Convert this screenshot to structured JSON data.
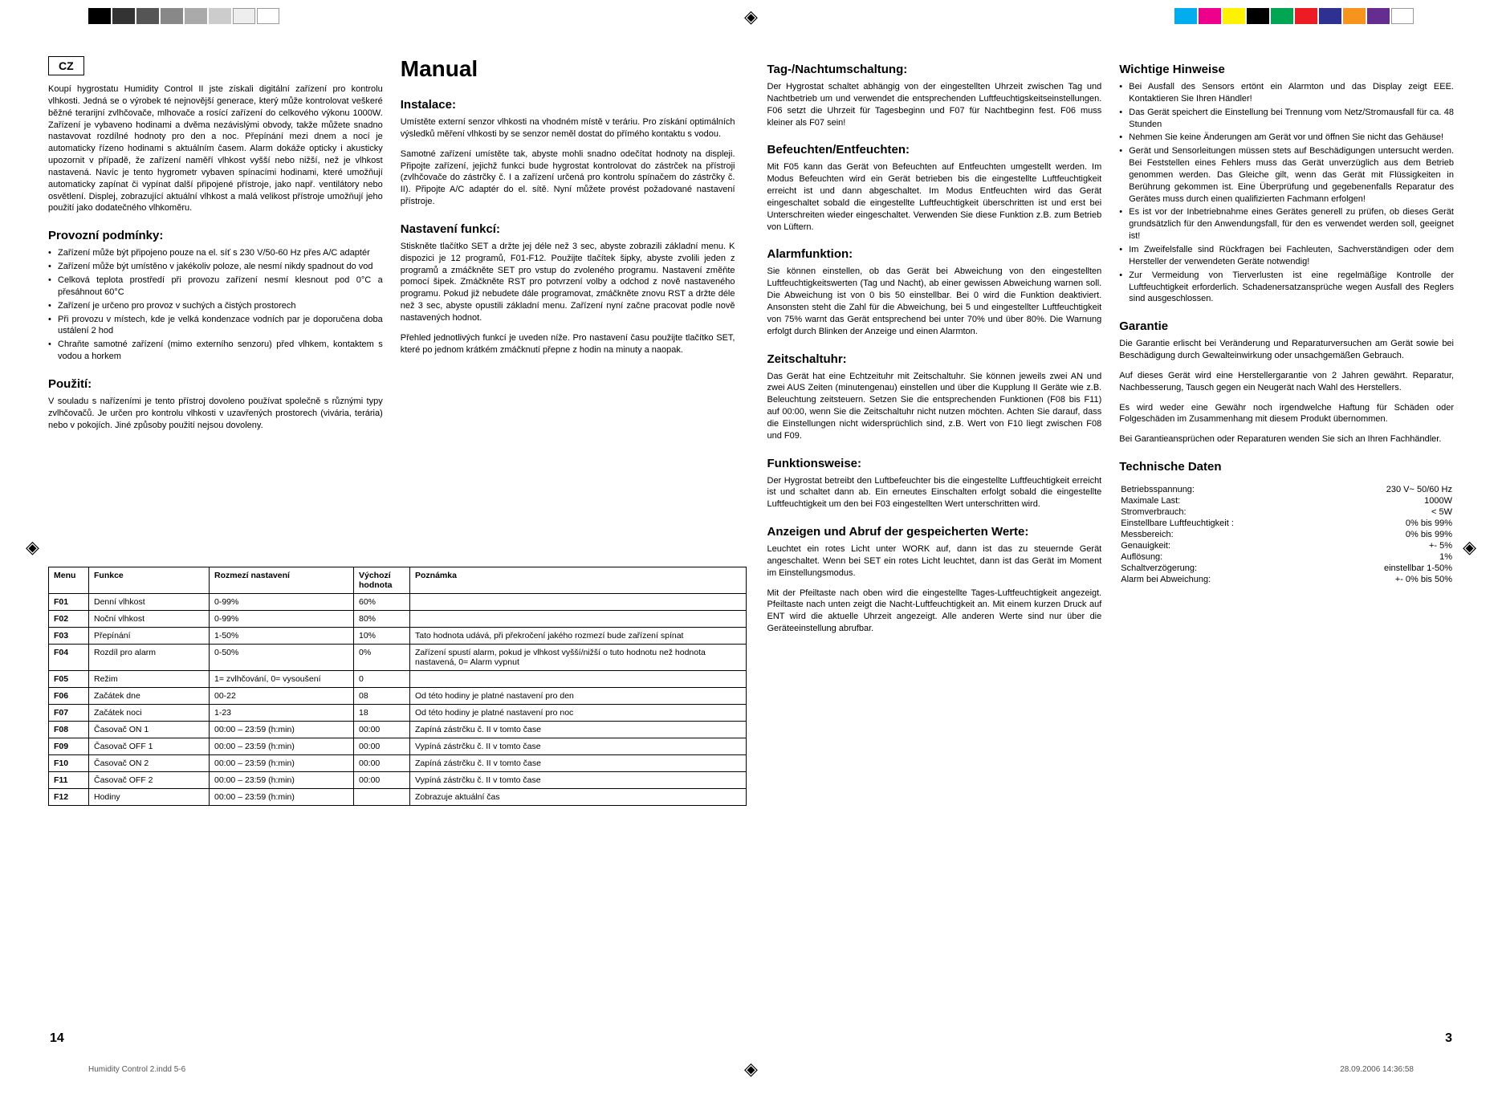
{
  "colorBars": {
    "left": [
      "#000",
      "#333",
      "#555",
      "#888",
      "#aaa",
      "#ccc",
      "#eee",
      "#fff"
    ],
    "right": [
      "#00aeef",
      "#ec008c",
      "#fff200",
      "#000000",
      "#00a651",
      "#ed1c24",
      "#2e3192",
      "#f7941d",
      "#662d91",
      "#ffffff"
    ]
  },
  "leftPage": {
    "lang": "CZ",
    "title": "Manual",
    "intro": "Koupí hygrostatu Humidity Control II jste získali digitální zařízení pro kontrolu vlhkosti. Jedná se o výrobek té nejnovější generace, který může kontrolovat veškeré běžné terarijní zvlhčovače, mlhovače a rosící zařízení do celkového výkonu 1000W. Zařízení je vybaveno hodinami a dvěma nezávislými obvody, takže můžete snadno nastavovat rozdílné hodnoty pro den a noc. Přepínání mezi dnem a nocí je automaticky řízeno hodinami s aktuálním časem. Alarm dokáže opticky i akusticky upozornit v případě, že zařízení naměří vlhkost vyšší nebo nižší, než je vlhkost nastavená. Navíc je tento hygrometr vybaven spínacími hodinami, které umožňují automaticky zapínat či vypínat další připojené přístroje, jako např. ventilátory nebo osvětlení. Displej, zobrazující aktuální vlhkost a malá velikost přístroje umožňují jeho použití jako dodatečného vlhkoměru.",
    "provozni_h": "Provozní podmínky:",
    "provozni": [
      "Zařízení může být připojeno pouze na el. síť s 230 V/50-60 Hz přes A/C adaptér",
      "Zařízení může být umístěno v jakékoliv poloze, ale nesmí nikdy spadnout do vod",
      "Celková teplota prostředí při provozu zařízení nesmí klesnout pod 0°C a přesáhnout 60°C",
      "Zařízení je určeno pro provoz v suchých a čistých prostorech",
      "Při provozu v místech, kde je velká kondenzace vodních par je doporučena doba ustálení 2 hod",
      "Chraňte samotné zařízení (mimo externího senzoru) před vlhkem, kontaktem s vodou a horkem"
    ],
    "pouziti_h": "Použití:",
    "pouziti": "V souladu s nařízeními je tento přístroj dovoleno používat společně s různými typy zvlhčovačů. Je určen pro kontrolu vlhkosti v uzavřených prostorech (vivária, terária) nebo v pokojích. Jiné způsoby použití nejsou dovoleny.",
    "instalace_h": "Instalace:",
    "instalace1": "Umístěte externí senzor vlhkosti na vhodném místě v teráriu. Pro získání optimálních výsledků měření vlhkosti by se senzor neměl dostat do přímého kontaktu s vodou.",
    "instalace2": "Samotné zařízení umístěte tak, abyste mohli snadno odečítat hodnoty na displeji. Připojte zařízení, jejichž funkci bude hygrostat kontrolovat do zástrček na přístroji (zvlhčovače do zástrčky č. I a zařízení určená pro kontrolu spínačem do zástrčky č. II). Připojte A/C adaptér do el. sítě. Nyní můžete provést požadované nastavení přístroje.",
    "nastaveni_h": "Nastavení funkcí:",
    "nastaveni1": "Stiskněte tlačítko SET a držte jej déle než 3 sec, abyste zobrazili základní menu. K dispozici je 12 programů, F01-F12. Použijte tlačítek šipky, abyste zvolili jeden z programů a zmáčkněte SET pro vstup do zvoleného programu. Nastavení změňte pomocí šipek. Zmáčkněte RST pro potvrzení volby a odchod z nově nastaveného programu. Pokud již nebudete dále programovat, zmáčkněte znovu RST a držte déle než 3 sec, abyste opustili základní menu. Zařízení nyní začne pracovat podle nově nastavených hodnot.",
    "nastaveni2": "Přehled jednotlivých funkcí je uveden níže. Pro nastavení času použijte tlačítko SET, které po jednom krátkém zmáčknutí přepne z hodin na minuty a naopak.",
    "table": {
      "headers": [
        "Menu",
        "Funkce",
        "Rozmezí nastavení",
        "Výchozí hodnota",
        "Poznámka"
      ],
      "rows": [
        [
          "F01",
          "Denní vlhkost",
          "0-99%",
          "60%",
          ""
        ],
        [
          "F02",
          "Noční vlhkost",
          "0-99%",
          "80%",
          ""
        ],
        [
          "F03",
          "Přepínání",
          "1-50%",
          "10%",
          "Tato hodnota udává, při překročení jakého rozmezí bude zařízení spínat"
        ],
        [
          "F04",
          "Rozdíl pro alarm",
          "0-50%",
          "0%",
          "Zařízení spustí alarm, pokud je vlhkost vyšší/nižší o tuto hodnotu než hodnota nastavená, 0= Alarm vypnut"
        ],
        [
          "F05",
          "Režim",
          "1= zvlhčování, 0= vysoušení",
          "0",
          ""
        ],
        [
          "F06",
          "Začátek dne",
          "00-22",
          "08",
          "Od této hodiny je platné nastavení pro den"
        ],
        [
          "F07",
          "Začátek noci",
          "1-23",
          "18",
          "Od této hodiny je platné nastavení pro noc"
        ],
        [
          "F08",
          "Časovač ON 1",
          "00:00 – 23:59 (h:min)",
          "00:00",
          "Zapíná zástrčku č. II v tomto čase"
        ],
        [
          "F09",
          "Časovač OFF 1",
          "00:00 – 23:59 (h:min)",
          "00:00",
          "Vypíná zástrčku č. II v tomto čase"
        ],
        [
          "F10",
          "Časovač ON 2",
          "00:00 – 23:59 (h:min)",
          "00:00",
          "Zapíná zástrčku č. II v tomto čase"
        ],
        [
          "F11",
          "Časovač OFF 2",
          "00:00 – 23:59 (h:min)",
          "00:00",
          "Vypíná zástrčku č. II v tomto čase"
        ],
        [
          "F12",
          "Hodiny",
          "00:00 – 23:59 (h:min)",
          "",
          "Zobrazuje aktuální čas"
        ]
      ]
    },
    "pageNum": "14"
  },
  "rightPage": {
    "sections": [
      {
        "h": "Tag-/Nachtumschaltung:",
        "p": "Der Hygrostat schaltet abhängig von der eingestellten Uhrzeit zwischen Tag und Nachtbetrieb um und verwendet die entsprechenden Luftfeuchtigskeitseinstellungen. F06 setzt die Uhrzeit für Tagesbeginn und F07 für Nachtbeginn fest. F06 muss kleiner als F07 sein!"
      },
      {
        "h": "Befeuchten/Entfeuchten:",
        "p": "Mit F05 kann das Gerät von Befeuchten auf Entfeuchten umgestellt werden. Im Modus Befeuchten wird ein Gerät betrieben bis die eingestellte Luftfeuchtigkeit erreicht ist und dann abgeschaltet. Im Modus Entfeuchten wird das Gerät eingeschaltet sobald die eingestellte Luftfeuchtigkeit überschritten ist und erst bei Unterschreiten wieder eingeschaltet. Verwenden Sie diese Funktion z.B. zum Betrieb von Lüftern."
      },
      {
        "h": "Alarmfunktion:",
        "p": "Sie können einstellen, ob das Gerät bei Abweichung von den eingestellten Luftfeuchtigkeitswerten (Tag und Nacht), ab einer gewissen Abweichung warnen soll. Die Abweichung ist von 0 bis 50 einstellbar. Bei 0 wird die Funktion deaktiviert. Ansonsten steht die Zahl für die Abweichung, bei 5 und eingestellter Luftfeuchtigkeit von 75% warnt das Gerät entsprechend bei unter 70% und über 80%. Die Warnung erfolgt durch Blinken der Anzeige und einen Alarmton."
      },
      {
        "h": "Zeitschaltuhr:",
        "p": "Das Gerät hat eine Echtzeituhr mit Zeitschaltuhr. Sie können jeweils zwei AN und zwei AUS Zeiten (minutengenau) einstellen und über die Kupplung II Geräte wie z.B. Beleuchtung zeitsteuern. Setzen Sie die entsprechenden Funktionen (F08 bis F11) auf 00:00, wenn Sie die Zeitschaltuhr nicht nutzen möchten. Achten Sie darauf, dass die Einstellungen nicht widersprüchlich sind, z.B. Wert von F10 liegt zwischen F08 und F09."
      },
      {
        "h": "Funktionsweise:",
        "p": "Der Hygrostat betreibt den Luftbefeuchter bis die eingestellte Luftfeuchtigkeit erreicht ist und schaltet dann ab. Ein erneutes Einschalten erfolgt sobald die eingestellte Luftfeuchtigkeit um den bei F03 eingestellten Wert unterschritten wird."
      },
      {
        "h": "Anzeigen und Abruf der gespeicherten Werte:",
        "p": "Leuchtet ein rotes Licht unter WORK auf, dann ist das zu steuernde Gerät angeschaltet. Wenn bei SET ein rotes Licht leuchtet, dann ist das Gerät im Moment im Einstellungsmodus."
      },
      {
        "p": "Mit der Pfeiltaste nach oben wird die eingestellte Tages-Luftfeuchtigkeit angezeigt. Pfeiltaste nach unten zeigt die Nacht-Luftfeuchtigkeit an. Mit einem kurzen Druck auf ENT wird die aktuelle Uhrzeit angezeigt. Alle anderen Werte sind nur über die Geräteeinstellung abrufbar."
      }
    ],
    "wichtige_h": "Wichtige Hinweise",
    "wichtige": [
      "Bei Ausfall des Sensors ertönt ein Alarmton und das Display zeigt EEE. Kontaktieren Sie Ihren Händler!",
      "Das Gerät speichert die Einstellung bei Trennung vom Netz/Stromausfall für ca. 48 Stunden",
      "Nehmen Sie keine Änderungen am Gerät vor und öffnen Sie nicht das Gehäuse!",
      "Gerät und Sensorleitungen müssen stets auf Beschädigungen untersucht werden. Bei Feststellen eines Fehlers muss das Gerät unverzüglich aus dem Betrieb genommen werden. Das Gleiche gilt, wenn das Gerät mit Flüssigkeiten in Berührung gekommen ist. Eine Überprüfung und gegebenenfalls Reparatur des Gerätes muss durch einen qualifizierten Fachmann erfolgen!",
      "Es ist vor der Inbetriebnahme eines Gerätes generell zu prüfen, ob dieses Gerät grundsätzlich für den Anwendungsfall, für den es verwendet werden soll, geeignet ist!",
      "Im Zweifelsfalle sind Rückfragen bei Fachleuten, Sachverständigen oder dem Hersteller der verwendeten Geräte notwendig!",
      "Zur Vermeidung von Tierverlusten ist eine regelmäßige Kontrolle der Luftfeuchtigkeit erforderlich. Schadenersatzansprüche wegen Ausfall des Reglers sind ausgeschlossen."
    ],
    "garantie_h": "Garantie",
    "garantie": [
      "Die Garantie erlischt bei Veränderung und Reparaturversuchen am Gerät sowie bei Beschädigung durch Gewalteinwirkung oder unsachgemäßen Gebrauch.",
      "Auf dieses Gerät wird eine Herstellergarantie von 2 Jahren gewährt. Reparatur, Nachbesserung, Tausch gegen ein Neugerät nach Wahl des Herstellers.",
      "Es wird weder eine Gewähr noch irgendwelche Haftung für Schäden oder Folgeschäden im Zusammenhang mit diesem Produkt übernommen.",
      "Bei Garantieansprüchen oder Reparaturen wenden Sie sich an Ihren Fachhändler."
    ],
    "tech_h": "Technische Daten",
    "tech": [
      [
        "Betriebsspannung:",
        "230 V~ 50/60 Hz"
      ],
      [
        "Maximale Last:",
        "1000W"
      ],
      [
        "Stromverbrauch:",
        "< 5W"
      ],
      [
        "Einstellbare Luftfeuchtigkeit :",
        "0% bis 99%"
      ],
      [
        "Messbereich:",
        "0% bis 99%"
      ],
      [
        "Genauigkeit:",
        "+- 5%"
      ],
      [
        "Auflösung:",
        "1%"
      ],
      [
        "Schaltverzögerung:",
        "einstellbar 1-50%"
      ],
      [
        "Alarm bei Abweichung:",
        "+- 0% bis 50%"
      ]
    ],
    "pageNum": "3"
  },
  "footer": {
    "left": "Humidity Control 2.indd   5-6",
    "right": "28.09.2006   14:36:58"
  }
}
